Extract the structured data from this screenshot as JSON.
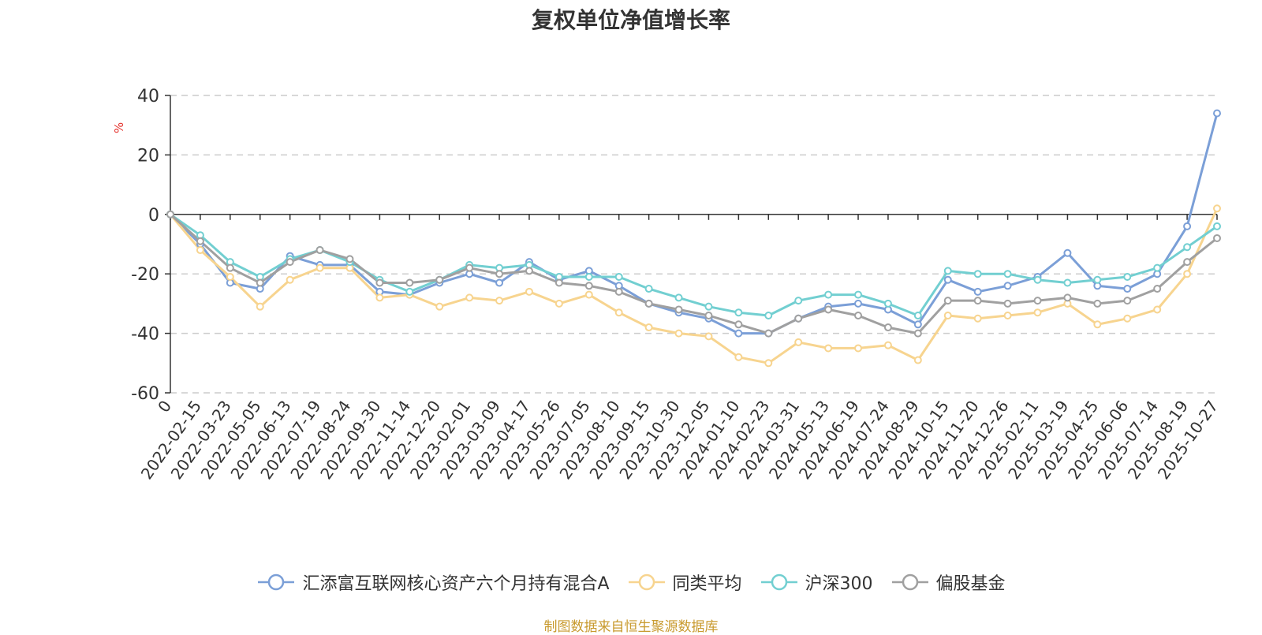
{
  "chart_data": {
    "type": "line",
    "title": "复权单位净值增长率",
    "ylabel": "%",
    "ylim": [
      -60,
      40
    ],
    "yticks": [
      40,
      20,
      0,
      -20,
      -40,
      -60
    ],
    "grid": "horizontal-dashed",
    "legend_position": "bottom-center",
    "x_tick_labels": [
      "0",
      "2022-02-15",
      "2022-03-23",
      "2022-05-05",
      "2022-06-13",
      "2022-07-19",
      "2022-08-24",
      "2022-09-30",
      "2022-11-14",
      "2022-12-20",
      "2023-02-01",
      "2023-03-09",
      "2023-04-17",
      "2023-05-26",
      "2023-07-05",
      "2023-08-10",
      "2023-09-15",
      "2023-10-30",
      "2023-12-05",
      "2024-01-10",
      "2024-02-23",
      "2024-03-31",
      "2024-05-13",
      "2024-06-19",
      "2024-07-24",
      "2024-08-29",
      "2024-10-15",
      "2024-11-20",
      "2024-12-26",
      "2025-02-11",
      "2025-03-19",
      "2025-04-25",
      "2025-06-06",
      "2025-07-14",
      "2025-08-19",
      "2025-10-27"
    ],
    "x_index": [
      0,
      1,
      2,
      3,
      4,
      5,
      6,
      7,
      8,
      9,
      10,
      11,
      12,
      13,
      14,
      15,
      16,
      17,
      18,
      19,
      20,
      21,
      22,
      23,
      24,
      25,
      26,
      27,
      28,
      29,
      30,
      31,
      32,
      33,
      34,
      35
    ],
    "series": [
      {
        "name": "汇添富互联网核心资产六个月持有混合A",
        "color": "#7b9fd7",
        "values": [
          0,
          -10,
          -23,
          -25,
          -14,
          -17,
          -17,
          -26,
          -27,
          -23,
          -20,
          -23,
          -16,
          -22,
          -19,
          -24,
          -30,
          -33,
          -35,
          -40,
          -40,
          -35,
          -31,
          -30,
          -32,
          -37,
          -22,
          -26,
          -24,
          -21,
          -13,
          -24,
          -25,
          -20,
          -4,
          34
        ]
      },
      {
        "name": "同类平均",
        "color": "#f7d48f",
        "values": [
          0,
          -12,
          -21,
          -31,
          -22,
          -18,
          -18,
          -28,
          -27,
          -31,
          -28,
          -29,
          -26,
          -30,
          -27,
          -33,
          -38,
          -40,
          -41,
          -48,
          -50,
          -43,
          -45,
          -45,
          -44,
          -49,
          -34,
          -35,
          -34,
          -33,
          -30,
          -37,
          -35,
          -32,
          -20,
          2
        ]
      },
      {
        "name": "沪深300",
        "color": "#72cfd1",
        "values": [
          0,
          -7,
          -16,
          -21,
          -15,
          -12,
          -16,
          -22,
          -26,
          -22,
          -17,
          -18,
          -17,
          -21,
          -21,
          -21,
          -25,
          -28,
          -31,
          -33,
          -34,
          -29,
          -27,
          -27,
          -30,
          -34,
          -19,
          -20,
          -20,
          -22,
          -23,
          -22,
          -21,
          -18,
          -11,
          -4
        ]
      },
      {
        "name": "偏股基金",
        "color": "#a0a0a0",
        "values": [
          0,
          -9,
          -18,
          -23,
          -16,
          -12,
          -15,
          -23,
          -23,
          -22,
          -18,
          -20,
          -19,
          -23,
          -24,
          -26,
          -30,
          -32,
          -34,
          -37,
          -40,
          -35,
          -32,
          -34,
          -38,
          -40,
          -29,
          -29,
          -30,
          -29,
          -28,
          -30,
          -29,
          -25,
          -16,
          -8
        ]
      }
    ]
  },
  "source_note": "制图数据来自恒生聚源数据库"
}
